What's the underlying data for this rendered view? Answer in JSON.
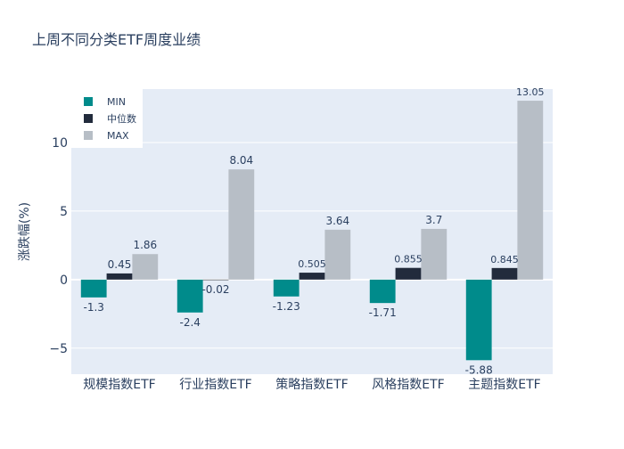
{
  "chart_data": {
    "type": "bar",
    "title": "上周不同分类ETF周度业绩",
    "xlabel": "",
    "ylabel": "涨跌幅(%)",
    "ylim": [
      -6.9,
      13.9
    ],
    "yticks": [
      -5,
      0,
      5,
      10
    ],
    "ytick_labels": [
      "−5",
      "0",
      "5",
      "10"
    ],
    "grid": true,
    "legend_position": "top-left",
    "categories": [
      "规模指数ETF",
      "行业指数ETF",
      "策略指数ETF",
      "风格指数ETF",
      "主题指数ETF"
    ],
    "series": [
      {
        "name": "MIN",
        "color": "#008B8B",
        "values": [
          -1.3,
          -2.4,
          -1.23,
          -1.71,
          -5.88
        ],
        "labels": [
          "-1.3",
          "-2.4",
          "-1.23",
          "-1.71",
          "-5.88"
        ]
      },
      {
        "name": "中位数",
        "color": "#222B3C",
        "values": [
          0.45,
          -0.02,
          0.505,
          0.855,
          0.845
        ],
        "labels": [
          "0.45",
          "-0.02",
          "0.505",
          "0.855",
          "0.845"
        ]
      },
      {
        "name": "MAX",
        "color": "#B7BEC6",
        "values": [
          1.86,
          8.04,
          3.64,
          3.7,
          13.05
        ],
        "labels": [
          "1.86",
          "8.04",
          "3.64",
          "3.7",
          "13.05"
        ]
      }
    ]
  },
  "colors": {
    "plot_bg": "#E5ECF6",
    "grid": "#FFFFFF",
    "text": "#2A3F5F"
  }
}
